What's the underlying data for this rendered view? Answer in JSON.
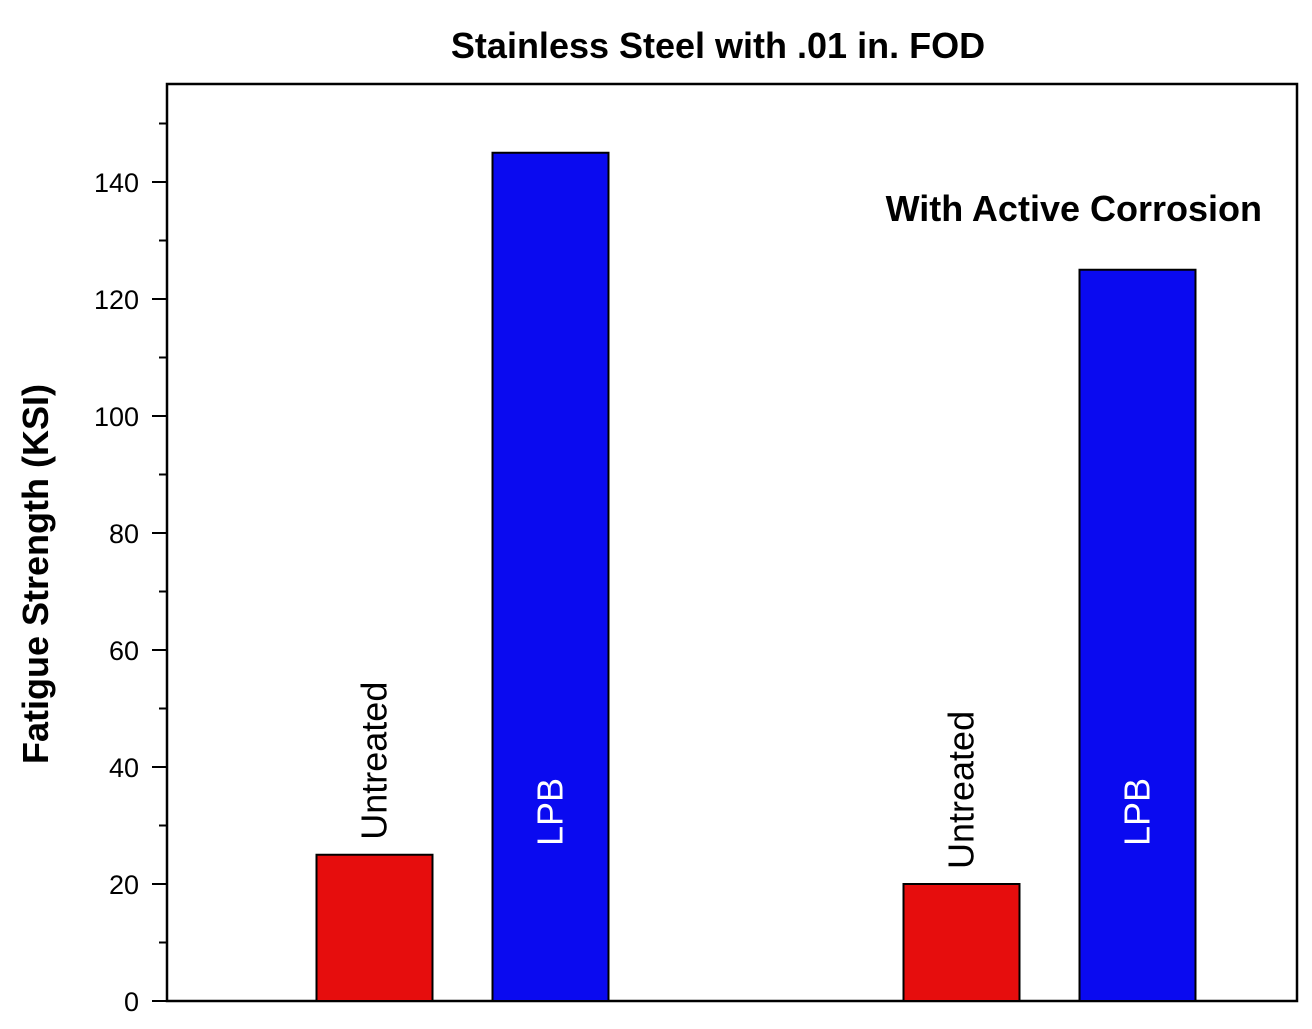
{
  "chart_data": {
    "type": "bar",
    "title": "Stainless Steel with .01 in. FOD",
    "xlabel": "",
    "ylabel": "Fatigue Strength (KSI)",
    "ylim": [
      0,
      150
    ],
    "y_major_ticks": [
      0,
      20,
      40,
      60,
      80,
      100,
      120,
      140
    ],
    "y_minor_tick_step": 10,
    "x_tick_labels": [],
    "grid": false,
    "legend": "none",
    "annotation": "With Active Corrosion",
    "bars": [
      {
        "group": 1,
        "label": "Untreated",
        "value": 25,
        "color": "#e60d0d",
        "label_color": "#000000",
        "label_position": "above"
      },
      {
        "group": 1,
        "label": "LPB",
        "value": 145,
        "color": "#0a0af0",
        "label_color": "#ffffff",
        "label_position": "inside"
      },
      {
        "group": 2,
        "label": "Untreated",
        "value": 20,
        "color": "#e60d0d",
        "label_color": "#000000",
        "label_position": "above"
      },
      {
        "group": 2,
        "label": "LPB",
        "value": 125,
        "color": "#0a0af0",
        "label_color": "#ffffff",
        "label_position": "inside"
      }
    ]
  }
}
